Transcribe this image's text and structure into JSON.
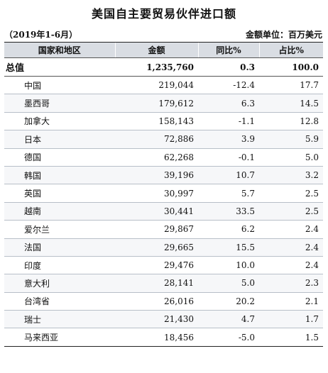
{
  "title": "美国自主要贸易伙伴进口额",
  "period": "（2019年1-6月）",
  "unit": "金额单位：百万美元",
  "headers": [
    "国家和地区",
    "金额",
    "同比%",
    "占比%"
  ],
  "total": {
    "name": "总值",
    "amount": "1,235,760",
    "yoy": "0.3",
    "share": "100.0"
  },
  "rows": [
    {
      "name": "中国",
      "amount": "219,044",
      "yoy": "-12.4",
      "share": "17.7"
    },
    {
      "name": "墨西哥",
      "amount": "179,612",
      "yoy": "6.3",
      "share": "14.5"
    },
    {
      "name": "加拿大",
      "amount": "158,143",
      "yoy": "-1.1",
      "share": "12.8"
    },
    {
      "name": "日本",
      "amount": "72,886",
      "yoy": "3.9",
      "share": "5.9"
    },
    {
      "name": "德国",
      "amount": "62,268",
      "yoy": "-0.1",
      "share": "5.0"
    },
    {
      "name": "韩国",
      "amount": "39,196",
      "yoy": "10.7",
      "share": "3.2"
    },
    {
      "name": "英国",
      "amount": "30,997",
      "yoy": "5.7",
      "share": "2.5"
    },
    {
      "name": "越南",
      "amount": "30,441",
      "yoy": "33.5",
      "share": "2.5"
    },
    {
      "name": "爱尔兰",
      "amount": "29,867",
      "yoy": "6.2",
      "share": "2.4"
    },
    {
      "name": "法国",
      "amount": "29,665",
      "yoy": "15.5",
      "share": "2.4"
    },
    {
      "name": "印度",
      "amount": "29,476",
      "yoy": "10.0",
      "share": "2.4"
    },
    {
      "name": "意大利",
      "amount": "28,141",
      "yoy": "5.0",
      "share": "2.3"
    },
    {
      "name": "台湾省",
      "amount": "26,016",
      "yoy": "20.2",
      "share": "2.1"
    },
    {
      "name": "瑞士",
      "amount": "21,430",
      "yoy": "4.7",
      "share": "1.7"
    },
    {
      "name": "马来西亚",
      "amount": "18,456",
      "yoy": "-5.0",
      "share": "1.5"
    }
  ]
}
